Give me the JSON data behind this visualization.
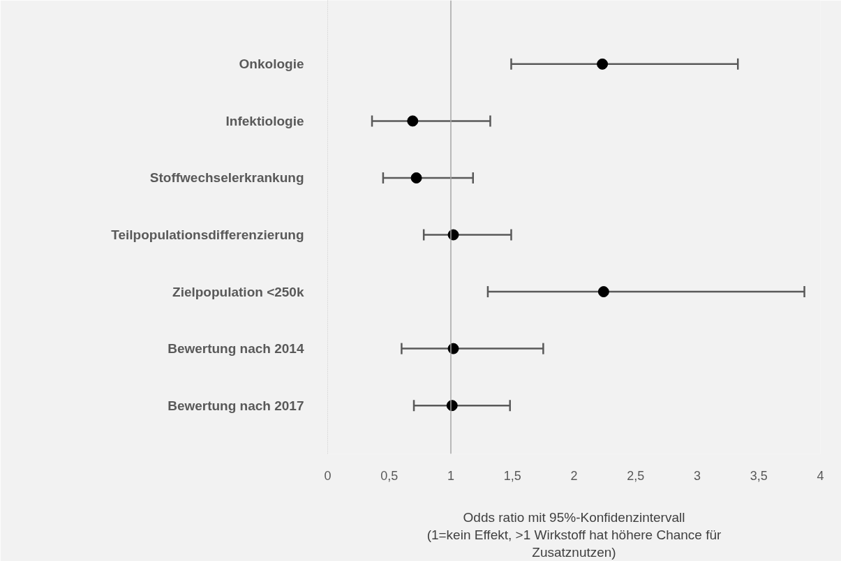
{
  "chart_data": {
    "type": "scatter",
    "orientation": "horizontal",
    "marker": "circle",
    "grid": false,
    "xlabel": "Odds ratio mit 95%-Konfidenzintervall\n(1=kein Effekt, >1 Wirkstoff hat höhere Chance für\nZusatznutzen)",
    "categories": [
      "Onkologie",
      "Infektiologie",
      "Stoffwechselerkrankung",
      "Teilpopulationsdifferenzierung",
      "Zielpopulation <250k",
      "Bewertung nach 2014",
      "Bewertung nach 2017"
    ],
    "series": [
      {
        "color": "#000000",
        "values": [
          2.23,
          0.69,
          0.72,
          1.02,
          2.24,
          1.02,
          1.01
        ],
        "errors": [
          [
            1.49,
            3.33
          ],
          [
            0.36,
            1.32
          ],
          [
            0.45,
            1.18
          ],
          [
            0.78,
            1.49
          ],
          [
            1.3,
            3.87
          ],
          [
            0.6,
            1.75
          ],
          [
            0.7,
            1.48
          ]
        ]
      }
    ],
    "xlim": [
      0,
      4
    ],
    "xticks": [
      0,
      {
        "value": 0.5,
        "label": "0,5"
      },
      1,
      {
        "value": 1.5,
        "label": "1,5"
      },
      2,
      {
        "value": 2.5,
        "label": "2,5"
      },
      3,
      {
        "value": 3.5,
        "label": "3,5"
      },
      4
    ],
    "ref_lines": [
      {
        "axis": "x",
        "value": 1,
        "color": "#a6a6a6"
      }
    ]
  }
}
